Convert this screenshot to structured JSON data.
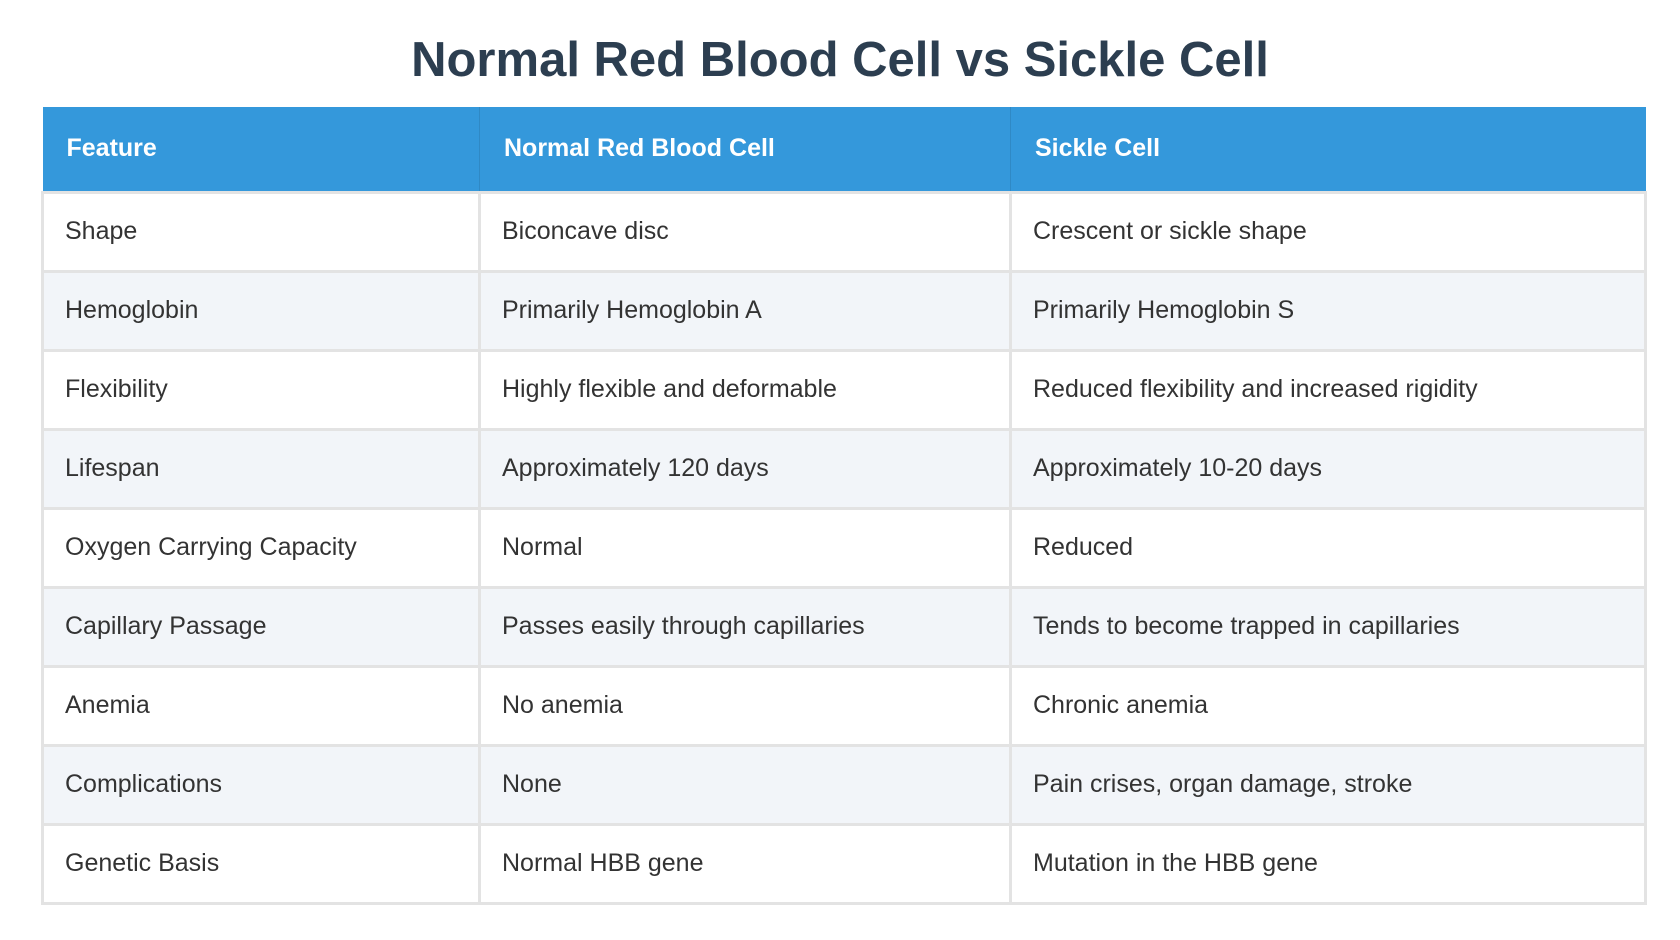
{
  "title": "Normal Red Blood Cell vs Sickle Cell",
  "columns": [
    "Feature",
    "Normal Red Blood Cell",
    "Sickle Cell"
  ],
  "rows": [
    [
      "Shape",
      "Biconcave disc",
      "Crescent or sickle shape"
    ],
    [
      "Hemoglobin",
      "Primarily Hemoglobin A",
      "Primarily Hemoglobin S"
    ],
    [
      "Flexibility",
      "Highly flexible and deformable",
      "Reduced flexibility and increased rigidity"
    ],
    [
      "Lifespan",
      "Approximately 120 days",
      "Approximately 10-20 days"
    ],
    [
      "Oxygen Carrying Capacity",
      "Normal",
      "Reduced"
    ],
    [
      "Capillary Passage",
      "Passes easily through capillaries",
      "Tends to become trapped in capillaries"
    ],
    [
      "Anemia",
      "No anemia",
      "Chronic anemia"
    ],
    [
      "Complications",
      "None",
      "Pain crises, organ damage, stroke"
    ],
    [
      "Genetic Basis",
      "Normal HBB gene",
      "Mutation in the HBB gene"
    ]
  ],
  "colors": {
    "header_background": "#3498db",
    "header_text": "#ffffff",
    "title_text": "#2c3e50",
    "row_alt_background": "#f2f5f9",
    "border": "#e3e3e3"
  }
}
